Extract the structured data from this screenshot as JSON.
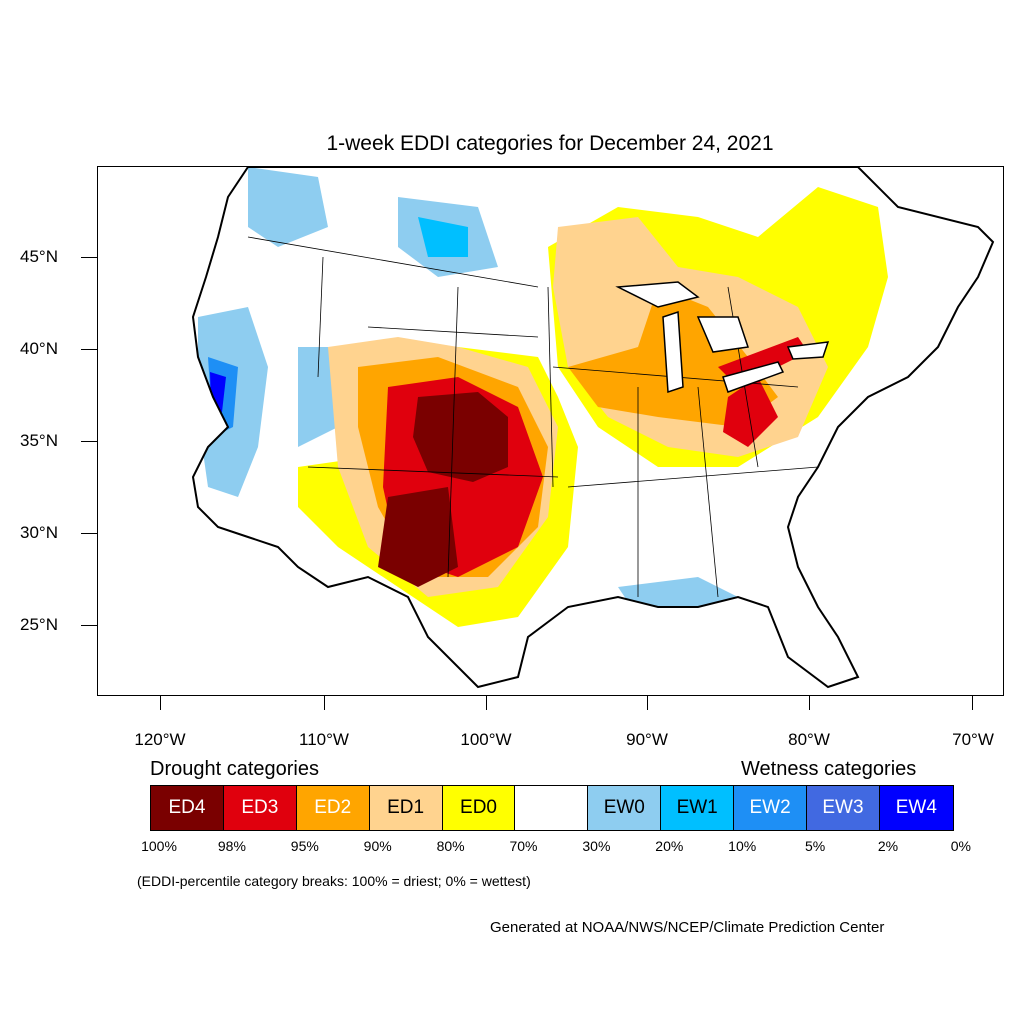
{
  "title": "1-week EDDI categories for December 24, 2021",
  "axes": {
    "lat_labels": [
      "45°N",
      "40°N",
      "35°N",
      "30°N",
      "25°N"
    ],
    "lon_labels": [
      "120°W",
      "110°W",
      "100°W",
      "90°W",
      "80°W",
      "70°W"
    ]
  },
  "legend": {
    "drought_heading": "Drought categories",
    "wetness_heading": "Wetness categories",
    "categories": [
      {
        "label": "ED4",
        "color": "#7a0000",
        "text_color": "#ffffff"
      },
      {
        "label": "ED3",
        "color": "#e0000d",
        "text_color": "#ffffff"
      },
      {
        "label": "ED2",
        "color": "#ffa500",
        "text_color": "#ffffff"
      },
      {
        "label": "ED1",
        "color": "#ffd38f",
        "text_color": "#000000"
      },
      {
        "label": "ED0",
        "color": "#ffff00",
        "text_color": "#000000"
      },
      {
        "label": "",
        "color": "#ffffff",
        "text_color": "#000000"
      },
      {
        "label": "EW0",
        "color": "#8ecdf0",
        "text_color": "#000000"
      },
      {
        "label": "EW1",
        "color": "#00bfff",
        "text_color": "#000000"
      },
      {
        "label": "EW2",
        "color": "#1e8ff5",
        "text_color": "#ffffff"
      },
      {
        "label": "EW3",
        "color": "#4169e1",
        "text_color": "#ffffff"
      },
      {
        "label": "EW4",
        "color": "#0000ff",
        "text_color": "#ffffff"
      }
    ],
    "breaks": [
      "100%",
      "98%",
      "95%",
      "90%",
      "80%",
      "70%",
      "30%",
      "20%",
      "10%",
      "5%",
      "2%",
      "0%"
    ],
    "note": "(EDDI-percentile category breaks: 100% = driest; 0% = wettest)"
  },
  "credit": "Generated at NOAA/NWS/NCEP/Climate Prediction Center"
}
